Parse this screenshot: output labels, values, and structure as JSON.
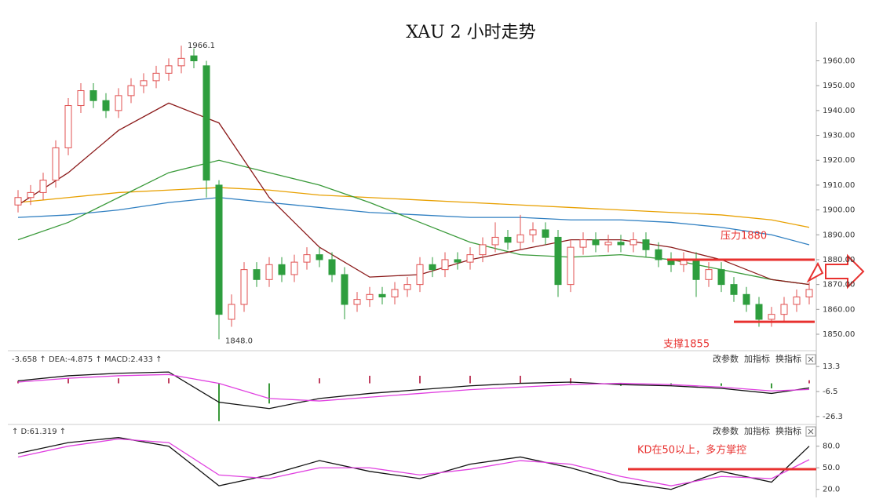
{
  "chart_data": [
    {
      "type": "candlestick",
      "title": "XAU 2 小时走势",
      "open": [
        1902,
        1905,
        1907,
        1912,
        1925,
        1942,
        1948,
        1944,
        1940,
        1946,
        1950,
        1952,
        1955,
        1958,
        1962,
        1958,
        1910,
        1856,
        1862,
        1876,
        1872,
        1878,
        1874,
        1879,
        1882,
        1880,
        1874,
        1862,
        1864,
        1866,
        1865,
        1868,
        1870,
        1878,
        1876,
        1880,
        1879,
        1882,
        1886,
        1889,
        1887,
        1890,
        1892,
        1889,
        1870,
        1885,
        1888,
        1886,
        1887,
        1886,
        1888,
        1884,
        1880,
        1878,
        1880,
        1872,
        1876,
        1870,
        1866,
        1862,
        1856,
        1858,
        1862,
        1865
      ],
      "high": [
        1908,
        1910,
        1915,
        1928,
        1945,
        1951,
        1951,
        1947,
        1949,
        1953,
        1955,
        1958,
        1961,
        1966.1,
        1965,
        1960,
        1912,
        1866,
        1879,
        1879,
        1881,
        1881,
        1882,
        1885,
        1885,
        1883,
        1877,
        1867,
        1869,
        1869,
        1871,
        1873,
        1881,
        1881,
        1883,
        1883,
        1885,
        1889,
        1895,
        1892,
        1898,
        1895,
        1895,
        1892,
        1888,
        1891,
        1891,
        1890,
        1890,
        1891,
        1891,
        1887,
        1883,
        1883,
        1883,
        1879,
        1879,
        1873,
        1869,
        1865,
        1861,
        1865,
        1868,
        1871
      ],
      "low": [
        1899,
        1902,
        1904,
        1909,
        1922,
        1939,
        1941,
        1937,
        1937,
        1943,
        1947,
        1949,
        1952,
        1955,
        1957,
        1905,
        1848,
        1853,
        1859,
        1869,
        1869,
        1871,
        1871,
        1876,
        1877,
        1871,
        1856,
        1859,
        1861,
        1862,
        1862,
        1865,
        1867,
        1873,
        1873,
        1876,
        1876,
        1879,
        1883,
        1884,
        1884,
        1887,
        1886,
        1865,
        1867,
        1882,
        1883,
        1883,
        1883,
        1883,
        1881,
        1877,
        1875,
        1875,
        1865,
        1869,
        1867,
        1863,
        1859,
        1853,
        1853,
        1855,
        1859,
        1862
      ],
      "close": [
        1905,
        1907,
        1912,
        1925,
        1942,
        1948,
        1944,
        1940,
        1946,
        1950,
        1952,
        1955,
        1958,
        1961,
        1960,
        1912,
        1858,
        1862,
        1876,
        1872,
        1878,
        1874,
        1879,
        1882,
        1880,
        1874,
        1862,
        1864,
        1866,
        1865,
        1868,
        1870,
        1878,
        1876,
        1880,
        1879,
        1882,
        1886,
        1889,
        1887,
        1890,
        1892,
        1889,
        1870,
        1885,
        1888,
        1886,
        1887,
        1886,
        1888,
        1884,
        1880,
        1878,
        1880,
        1872,
        1876,
        1870,
        1866,
        1862,
        1856,
        1858,
        1862,
        1865,
        1868
      ],
      "up_color": "#e05050",
      "down_color": "#2e9e3e",
      "high_label": "1966.1",
      "low_label": "1848.0",
      "line_x": [
        0,
        4,
        8,
        12,
        16,
        20,
        24,
        28,
        32,
        36,
        40,
        44,
        48,
        52,
        56,
        60,
        63
      ],
      "lines": [
        {
          "color": "#e8a000",
          "values": [
            1903,
            1905,
            1907,
            1908,
            1909,
            1908,
            1906,
            1905,
            1904,
            1903,
            1902,
            1901,
            1900,
            1899,
            1898,
            1896,
            1893
          ]
        },
        {
          "color": "#2f7fc1",
          "values": [
            1897,
            1898,
            1900,
            1903,
            1905,
            1903,
            1901,
            1899,
            1898,
            1897,
            1897,
            1896,
            1896,
            1895,
            1893,
            1890,
            1886
          ]
        },
        {
          "color": "#3a9a3a",
          "values": [
            1888,
            1895,
            1905,
            1915,
            1920,
            1915,
            1910,
            1903,
            1895,
            1887,
            1882,
            1881,
            1882,
            1880,
            1876,
            1872,
            1870
          ]
        },
        {
          "color": "#8b1a1a",
          "values": [
            1902,
            1915,
            1932,
            1943,
            1935,
            1905,
            1885,
            1873,
            1874,
            1880,
            1884,
            1888,
            1888,
            1885,
            1880,
            1872,
            1870
          ]
        }
      ],
      "levels": [
        {
          "value": 1880,
          "label": "压力1880",
          "color": "#e8312f"
        },
        {
          "value": 1855,
          "label": "支撑1855",
          "color": "#e8312f"
        }
      ],
      "ylim": [
        1844,
        1975
      ],
      "yticks": [
        {
          "value": 1850,
          "label": "1850.00"
        },
        {
          "value": 1860,
          "label": "1860.00"
        },
        {
          "value": 1870,
          "label": "1870.00"
        },
        {
          "value": 1880,
          "label": "1880.00"
        },
        {
          "value": 1890,
          "label": "1890.00"
        },
        {
          "value": 1900,
          "label": "1900.00"
        },
        {
          "value": 1910,
          "label": "1910.00"
        },
        {
          "value": 1920,
          "label": "1920.00"
        },
        {
          "value": 1930,
          "label": "1930.00"
        },
        {
          "value": 1940,
          "label": "1940.00"
        },
        {
          "value": 1950,
          "label": "1950.00"
        },
        {
          "value": 1960,
          "label": "1960.00"
        }
      ]
    },
    {
      "type": "macd",
      "header": "-3.658 ↑ DEA:-4.875 ↑ MACD:2.433 ↑",
      "buttons": [
        "改参数",
        "加指标",
        "换指标"
      ],
      "x": [
        0,
        4,
        8,
        12,
        16,
        20,
        24,
        28,
        32,
        36,
        40,
        44,
        48,
        52,
        56,
        60,
        63
      ],
      "dif": [
        2,
        6,
        8,
        9,
        -15,
        -20,
        -12,
        -8,
        -5,
        -2,
        0,
        1,
        -1,
        -2,
        -4,
        -8,
        -3.658
      ],
      "dea": [
        1,
        4,
        6,
        7,
        0,
        -12,
        -14,
        -11,
        -8,
        -5,
        -3,
        -1,
        0,
        -1,
        -3,
        -6,
        -4.875
      ],
      "bars": [
        2,
        4,
        4,
        4,
        -30,
        -16,
        4,
        6,
        6,
        6,
        6,
        4,
        -2,
        -2,
        -2,
        -4,
        2.433
      ],
      "dif_color": "#111111",
      "dea_color": "#e040e0",
      "pos_color": "#c04060",
      "neg_color": "#3a9a3a",
      "ylim": [
        -32,
        24
      ],
      "yticks": [
        13.3,
        -6.5,
        -26.3
      ]
    },
    {
      "type": "kd",
      "header": "↑ D:61.319 ↑",
      "buttons": [
        "改参数",
        "加指标",
        "换指标"
      ],
      "x": [
        0,
        4,
        8,
        12,
        16,
        20,
        24,
        28,
        32,
        36,
        40,
        44,
        48,
        52,
        56,
        60,
        63
      ],
      "k": [
        70,
        85,
        92,
        80,
        25,
        40,
        60,
        45,
        35,
        55,
        65,
        50,
        30,
        20,
        45,
        30,
        80
      ],
      "d": [
        65,
        80,
        90,
        85,
        40,
        35,
        50,
        50,
        40,
        48,
        60,
        55,
        38,
        25,
        38,
        35,
        61.319
      ],
      "k_color": "#111111",
      "d_color": "#e040e0",
      "level": 48,
      "level_color": "#e8312f",
      "annotation": "KD在50以上，多方掌控",
      "ylim": [
        11,
        108
      ],
      "yticks": [
        {
          "value": 20,
          "label": "20.0"
        },
        {
          "value": 50,
          "label": "50.0"
        },
        {
          "value": 80,
          "label": "80.0"
        }
      ]
    }
  ]
}
